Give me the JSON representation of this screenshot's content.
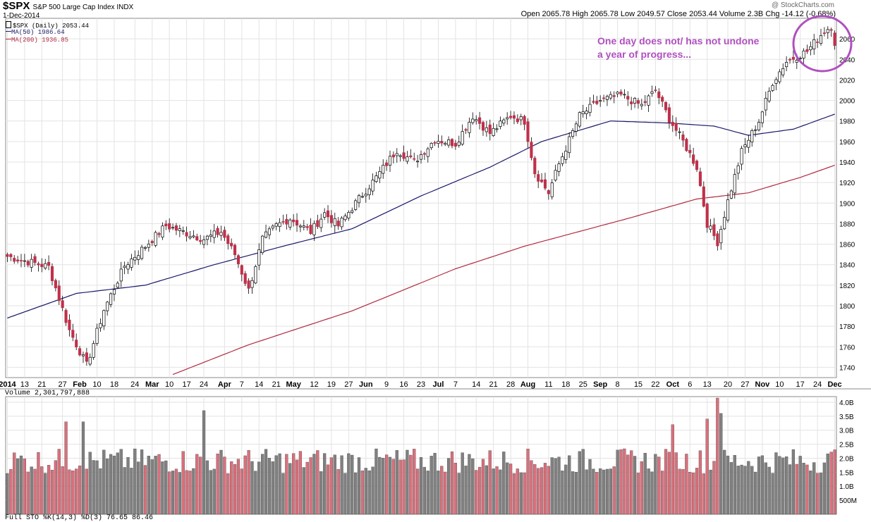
{
  "header": {
    "symbol": "$SPX",
    "name": "S&P 500 Large Cap Index INDX",
    "date": "1-Dec-2014",
    "ohlc": "Open 2065.78  High 2065.78  Low 2049.57  Close 2053.44  Volume 2.3B  Chg -14.12 (-0.68%)",
    "brand": "@ StockCharts.com"
  },
  "legend": {
    "price": "$SPX (Daily) 2053.44",
    "ma50": "MA(50) 1986.64",
    "ma200": "MA(200) 1936.85"
  },
  "annotation": "One day does not/ has not undone a year of progress...",
  "volume_label": "Volume 2,301,797,888",
  "sto_label": "Full STO %K(14,3) %D(3) 76.65  86.46",
  "colors": {
    "up": "#ffffff",
    "down": "#c0304a",
    "ma50": "#1a1a6a",
    "ma200": "#b02a40",
    "vol_up": "#808080",
    "vol_down": "#d9707c",
    "annotation": "#b04fc0",
    "grid": "#e3e3e3"
  },
  "chart_data": [
    {
      "type": "candlestick",
      "title": "$SPX (Daily)",
      "ylim": [
        1730,
        2080
      ],
      "y_ticks": [
        1740,
        1760,
        1780,
        1800,
        1820,
        1840,
        1860,
        1880,
        1900,
        1920,
        1940,
        1960,
        1980,
        2000,
        2020,
        2040,
        2060
      ],
      "x_ticks": [
        "2014",
        "13",
        "21",
        "27",
        "Feb",
        "10",
        "18",
        "24",
        "Mar",
        "10",
        "17",
        "24",
        "Apr",
        "7",
        "14",
        "21",
        "May",
        "12",
        "19",
        "27",
        "Jun",
        "9",
        "16",
        "23",
        "Jul",
        "7",
        "14",
        "21",
        "28",
        "Aug",
        "11",
        "18",
        "25",
        "Sep",
        "8",
        "15",
        "22",
        "Oct",
        "6",
        "13",
        "20",
        "27",
        "Nov",
        "10",
        "17",
        "24",
        "Dec"
      ],
      "month_ticks": [
        "2014",
        "Feb",
        "Mar",
        "Apr",
        "May",
        "Jun",
        "Jul",
        "Aug",
        "Sep",
        "Oct",
        "Nov",
        "Dec"
      ],
      "grid": true,
      "close_key_points": [
        {
          "x": 0,
          "y": 1848
        },
        {
          "x": 12,
          "y": 1838
        },
        {
          "x": 18,
          "y": 1776
        },
        {
          "x": 23,
          "y": 1742
        },
        {
          "x": 28,
          "y": 1796
        },
        {
          "x": 34,
          "y": 1839
        },
        {
          "x": 40,
          "y": 1858
        },
        {
          "x": 46,
          "y": 1878
        },
        {
          "x": 50,
          "y": 1873
        },
        {
          "x": 57,
          "y": 1865
        },
        {
          "x": 62,
          "y": 1872
        },
        {
          "x": 66,
          "y": 1850
        },
        {
          "x": 70,
          "y": 1815
        },
        {
          "x": 74,
          "y": 1865
        },
        {
          "x": 78,
          "y": 1878
        },
        {
          "x": 82,
          "y": 1885
        },
        {
          "x": 88,
          "y": 1872
        },
        {
          "x": 92,
          "y": 1890
        },
        {
          "x": 96,
          "y": 1878
        },
        {
          "x": 101,
          "y": 1900
        },
        {
          "x": 107,
          "y": 1925
        },
        {
          "x": 113,
          "y": 1952
        },
        {
          "x": 118,
          "y": 1940
        },
        {
          "x": 124,
          "y": 1962
        },
        {
          "x": 130,
          "y": 1958
        },
        {
          "x": 135,
          "y": 1985
        },
        {
          "x": 140,
          "y": 1968
        },
        {
          "x": 146,
          "y": 1985
        },
        {
          "x": 150,
          "y": 1980
        },
        {
          "x": 153,
          "y": 1930
        },
        {
          "x": 157,
          "y": 1910
        },
        {
          "x": 160,
          "y": 1938
        },
        {
          "x": 166,
          "y": 1985
        },
        {
          "x": 172,
          "y": 2000
        },
        {
          "x": 178,
          "y": 2005
        },
        {
          "x": 184,
          "y": 1995
        },
        {
          "x": 188,
          "y": 2010
        },
        {
          "x": 192,
          "y": 1982
        },
        {
          "x": 196,
          "y": 1960
        },
        {
          "x": 200,
          "y": 1935
        },
        {
          "x": 203,
          "y": 1880
        },
        {
          "x": 206,
          "y": 1862
        },
        {
          "x": 209,
          "y": 1902
        },
        {
          "x": 213,
          "y": 1950
        },
        {
          "x": 218,
          "y": 1980
        },
        {
          "x": 222,
          "y": 2018
        },
        {
          "x": 226,
          "y": 2038
        },
        {
          "x": 232,
          "y": 2048
        },
        {
          "x": 237,
          "y": 2068
        },
        {
          "x": 239,
          "y": 2072
        },
        {
          "x": 240,
          "y": 2053.44
        }
      ],
      "ma50_key_points": [
        {
          "x": 0,
          "y": 1788
        },
        {
          "x": 20,
          "y": 1812
        },
        {
          "x": 40,
          "y": 1820
        },
        {
          "x": 60,
          "y": 1840
        },
        {
          "x": 80,
          "y": 1858
        },
        {
          "x": 100,
          "y": 1875
        },
        {
          "x": 120,
          "y": 1907
        },
        {
          "x": 140,
          "y": 1935
        },
        {
          "x": 155,
          "y": 1960
        },
        {
          "x": 175,
          "y": 1980
        },
        {
          "x": 192,
          "y": 1978
        },
        {
          "x": 205,
          "y": 1975
        },
        {
          "x": 215,
          "y": 1966
        },
        {
          "x": 228,
          "y": 1972
        },
        {
          "x": 240,
          "y": 1986.64
        }
      ],
      "ma200_key_points": [
        {
          "x": 48,
          "y": 1733
        },
        {
          "x": 70,
          "y": 1762
        },
        {
          "x": 100,
          "y": 1795
        },
        {
          "x": 130,
          "y": 1836
        },
        {
          "x": 150,
          "y": 1858
        },
        {
          "x": 180,
          "y": 1885
        },
        {
          "x": 200,
          "y": 1904
        },
        {
          "x": 215,
          "y": 1910
        },
        {
          "x": 230,
          "y": 1925
        },
        {
          "x": 240,
          "y": 1936.85
        }
      ]
    },
    {
      "type": "bar",
      "title": "Volume",
      "ylim": [
        0,
        4200000000
      ],
      "y_tick_labels": [
        "4.0B",
        "3.5B",
        "3.0B",
        "2.5B",
        "2.0B",
        "1.5B",
        "1.0B",
        "500M"
      ],
      "y_tick_values": [
        4.0,
        3.5,
        3.0,
        2.5,
        2.0,
        1.5,
        1.0,
        0.5
      ],
      "last_value": 2301797888
    }
  ]
}
